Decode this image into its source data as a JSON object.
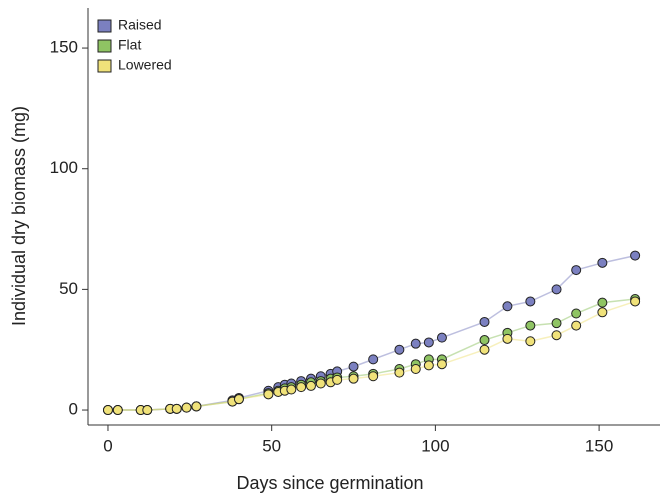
{
  "chart_data": {
    "type": "scatter",
    "x_label": "Days since germination",
    "y_label": "Individual dry biomass (mg)",
    "x": [
      0,
      3,
      10,
      12,
      19,
      21,
      24,
      27,
      38,
      40,
      49,
      52,
      54,
      56,
      59,
      62,
      65,
      68,
      70,
      75,
      81,
      89,
      94,
      98,
      102,
      115,
      122,
      129,
      137,
      143,
      151,
      161
    ],
    "series": [
      {
        "name": "Raised",
        "color": "#7b80c0",
        "values": [
          0,
          0,
          0,
          0,
          0.5,
          0.5,
          1,
          1.5,
          4,
          5,
          8,
          9.5,
          10.5,
          11,
          12,
          13,
          14,
          15,
          16,
          18,
          21,
          25,
          27.5,
          28,
          30,
          36.5,
          43,
          45,
          50,
          58,
          61,
          64
        ]
      },
      {
        "name": "Flat",
        "color": "#8fc463",
        "values": [
          0,
          0,
          0,
          0,
          0.5,
          0.5,
          1,
          1.5,
          3.5,
          4.5,
          7,
          8,
          9,
          9.5,
          10.5,
          11.5,
          12,
          13,
          13.5,
          14,
          15,
          17,
          19,
          21,
          21,
          29,
          32,
          35,
          36,
          40,
          44.5,
          46
        ]
      },
      {
        "name": "Lowered",
        "color": "#f0e27a",
        "values": [
          0,
          0,
          0,
          0,
          0.5,
          0.5,
          1,
          1.5,
          3.5,
          4.5,
          6.5,
          7.5,
          8,
          8.5,
          9.5,
          10,
          11,
          11.5,
          12.5,
          13,
          14,
          15.5,
          17,
          18.5,
          19,
          25,
          29.5,
          28.5,
          31,
          35,
          40.5,
          45
        ]
      }
    ],
    "xlim": [
      -6.1,
      168.6
    ],
    "ylim": [
      -6.2,
      166.6
    ],
    "xticks": [
      0,
      50,
      100,
      150
    ],
    "yticks": [
      0,
      50,
      100,
      150
    ],
    "legend": "upper left"
  }
}
